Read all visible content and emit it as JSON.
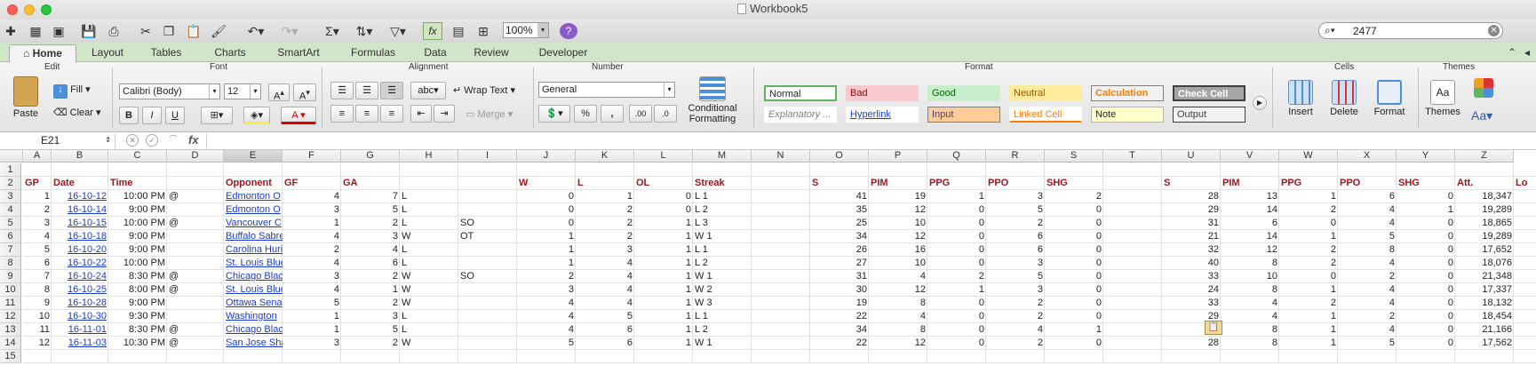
{
  "window": {
    "title": "Workbook5"
  },
  "colors": {
    "ribbon_tab_bg": "#d1e5c8",
    "header_text": "#a0161d",
    "link": "#1a3ccc"
  },
  "toolbar": {
    "icons": [
      "new-icon",
      "template-icon",
      "open-icon",
      "save-icon",
      "print-icon",
      "cut-icon",
      "copy-icon",
      "paste-icon",
      "format-painter-icon",
      "undo-icon",
      "redo-icon",
      "autosum-icon",
      "sort-icon",
      "filter-icon",
      "formula-builder-icon",
      "show-gallery-icon",
      "toolbox-icon",
      "help-icon"
    ],
    "zoom": "100%",
    "search_value": "2477"
  },
  "tabs": [
    "Home",
    "Layout",
    "Tables",
    "Charts",
    "SmartArt",
    "Formulas",
    "Data",
    "Review",
    "Developer"
  ],
  "ribbon": {
    "groups": {
      "edit": "Edit",
      "font": "Font",
      "alignment": "Alignment",
      "number": "Number",
      "format": "Format",
      "cells": "Cells",
      "themes": "Themes"
    },
    "paste": "Paste",
    "fill": "Fill",
    "clear": "Clear",
    "font_name": "Calibri (Body)",
    "font_size": "12",
    "bold": "B",
    "italic": "I",
    "underline": "U",
    "abc": "abc",
    "wrap_text": "Wrap Text",
    "merge": "Merge",
    "number_format": "General",
    "percent": "%",
    "comma": ",",
    "inc_decimal": ".00",
    "dec_decimal": ".0",
    "conditional_formatting": "Conditional Formatting",
    "styles": [
      {
        "label": "Normal",
        "bg": "#ffffff",
        "fg": "#222222",
        "border": "#5fb55f"
      },
      {
        "label": "Bad",
        "bg": "#f8c9ce",
        "fg": "#9c0006",
        "border": "#f8c9ce"
      },
      {
        "label": "Good",
        "bg": "#c9eecb",
        "fg": "#006100",
        "border": "#c9eecb"
      },
      {
        "label": "Neutral",
        "bg": "#ffeb9c",
        "fg": "#9c5700",
        "border": "#ffeb9c"
      },
      {
        "label": "Calculation",
        "bg": "#f2f2f2",
        "fg": "#fa7d00",
        "border": "#7f7f7f"
      },
      {
        "label": "Check Cell",
        "bg": "#a5a5a5",
        "fg": "#ffffff",
        "border": "#3f3f3f"
      },
      {
        "label": "Explanatory ...",
        "bg": "#ffffff",
        "fg": "#7f7f7f",
        "border": "#ffffff"
      },
      {
        "label": "Hyperlink",
        "bg": "#ffffff",
        "fg": "#1a3ccc",
        "border": "#ffffff"
      },
      {
        "label": "Input",
        "bg": "#ffcc99",
        "fg": "#3f3f76",
        "border": "#7f7f7f"
      },
      {
        "label": "Linked Cell",
        "bg": "#ffffff",
        "fg": "#fa7d00",
        "border": "#ffffff"
      },
      {
        "label": "Note",
        "bg": "#ffffcc",
        "fg": "#222222",
        "border": "#b2b2b2"
      },
      {
        "label": "Output",
        "bg": "#f2f2f2",
        "fg": "#3f3f3f",
        "border": "#3f3f3f"
      }
    ],
    "insert": "Insert",
    "delete": "Delete",
    "format": "Format",
    "themes": "Themes",
    "aa": "Aa"
  },
  "formula_bar": {
    "name_box": "E21",
    "fx": "fx",
    "formula": ""
  },
  "sheet": {
    "columns": [
      "A",
      "B",
      "C",
      "D",
      "E",
      "F",
      "G",
      "H",
      "I",
      "J",
      "K",
      "L",
      "M",
      "N",
      "O",
      "P",
      "Q",
      "R",
      "S",
      "T",
      "U",
      "V",
      "W",
      "X",
      "Y",
      "Z"
    ],
    "selected_column": "E",
    "rows": [
      "1",
      "2",
      "3",
      "4",
      "5",
      "6",
      "7",
      "8",
      "9",
      "10",
      "11",
      "12",
      "13",
      "14",
      "15"
    ],
    "header_row": [
      "GP",
      "Date",
      "Time",
      "",
      "Opponent",
      "GF",
      "GA",
      "",
      "",
      "W",
      "L",
      "OL",
      "Streak",
      "",
      "S",
      "PIM",
      "PPG",
      "PPO",
      "SHG",
      "",
      "S",
      "PIM",
      "PPG",
      "PPO",
      "SHG",
      "Att.",
      "Lo"
    ],
    "data": [
      [
        "1",
        "16-10-12",
        "10:00 PM",
        "@",
        "Edmonton O",
        "4",
        "7",
        "L",
        "",
        "0",
        "1",
        "0",
        "L 1",
        "",
        "41",
        "19",
        "1",
        "3",
        "2",
        "",
        "28",
        "13",
        "1",
        "6",
        "0",
        "18,347"
      ],
      [
        "2",
        "16-10-14",
        "9:00 PM",
        "",
        "Edmonton O",
        "3",
        "5",
        "L",
        "",
        "0",
        "2",
        "0",
        "L 2",
        "",
        "35",
        "12",
        "0",
        "5",
        "0",
        "",
        "29",
        "14",
        "2",
        "4",
        "1",
        "19,289"
      ],
      [
        "3",
        "16-10-15",
        "10:00 PM",
        "@",
        "Vancouver C",
        "1",
        "2",
        "L",
        "SO",
        "0",
        "2",
        "1",
        "L 3",
        "",
        "25",
        "10",
        "0",
        "2",
        "0",
        "",
        "31",
        "6",
        "0",
        "4",
        "0",
        "18,865"
      ],
      [
        "4",
        "16-10-18",
        "9:00 PM",
        "",
        "Buffalo Sabre",
        "4",
        "3",
        "W",
        "OT",
        "1",
        "2",
        "1",
        "W 1",
        "",
        "34",
        "12",
        "0",
        "6",
        "0",
        "",
        "21",
        "14",
        "1",
        "5",
        "0",
        "19,289"
      ],
      [
        "5",
        "16-10-20",
        "9:00 PM",
        "",
        "Carolina Huri",
        "2",
        "4",
        "L",
        "",
        "1",
        "3",
        "1",
        "L 1",
        "",
        "26",
        "16",
        "0",
        "6",
        "0",
        "",
        "32",
        "12",
        "2",
        "8",
        "0",
        "17,652"
      ],
      [
        "6",
        "16-10-22",
        "10:00 PM",
        "",
        "St. Louis Blue",
        "4",
        "6",
        "L",
        "",
        "1",
        "4",
        "1",
        "L 2",
        "",
        "27",
        "10",
        "0",
        "3",
        "0",
        "",
        "40",
        "8",
        "2",
        "4",
        "0",
        "18,076"
      ],
      [
        "7",
        "16-10-24",
        "8:30 PM",
        "@",
        "Chicago Blac",
        "3",
        "2",
        "W",
        "SO",
        "2",
        "4",
        "1",
        "W 1",
        "",
        "31",
        "4",
        "2",
        "5",
        "0",
        "",
        "33",
        "10",
        "0",
        "2",
        "0",
        "21,348"
      ],
      [
        "8",
        "16-10-25",
        "8:00 PM",
        "@",
        "St. Louis Blue",
        "4",
        "1",
        "W",
        "",
        "3",
        "4",
        "1",
        "W 2",
        "",
        "30",
        "12",
        "1",
        "3",
        "0",
        "",
        "24",
        "8",
        "1",
        "4",
        "0",
        "17,337"
      ],
      [
        "9",
        "16-10-28",
        "9:00 PM",
        "",
        "Ottawa Sena",
        "5",
        "2",
        "W",
        "",
        "4",
        "4",
        "1",
        "W 3",
        "",
        "19",
        "8",
        "0",
        "2",
        "0",
        "",
        "33",
        "4",
        "2",
        "4",
        "0",
        "18,132"
      ],
      [
        "10",
        "16-10-30",
        "9:30 PM",
        "",
        "Washington",
        "1",
        "3",
        "L",
        "",
        "4",
        "5",
        "1",
        "L 1",
        "",
        "22",
        "4",
        "0",
        "2",
        "0",
        "",
        "29",
        "4",
        "1",
        "2",
        "0",
        "18,454"
      ],
      [
        "11",
        "16-11-01",
        "8:30 PM",
        "@",
        "Chicago Blac",
        "1",
        "5",
        "L",
        "",
        "4",
        "6",
        "1",
        "L 2",
        "",
        "34",
        "8",
        "0",
        "4",
        "1",
        "",
        "22",
        "8",
        "1",
        "4",
        "0",
        "21,166"
      ],
      [
        "12",
        "16-11-03",
        "10:30 PM",
        "@",
        "San Jose Sha",
        "3",
        "2",
        "W",
        "",
        "5",
        "6",
        "1",
        "W 1",
        "",
        "22",
        "12",
        "0",
        "2",
        "0",
        "",
        "28",
        "8",
        "1",
        "5",
        "0",
        "17,562"
      ]
    ]
  }
}
